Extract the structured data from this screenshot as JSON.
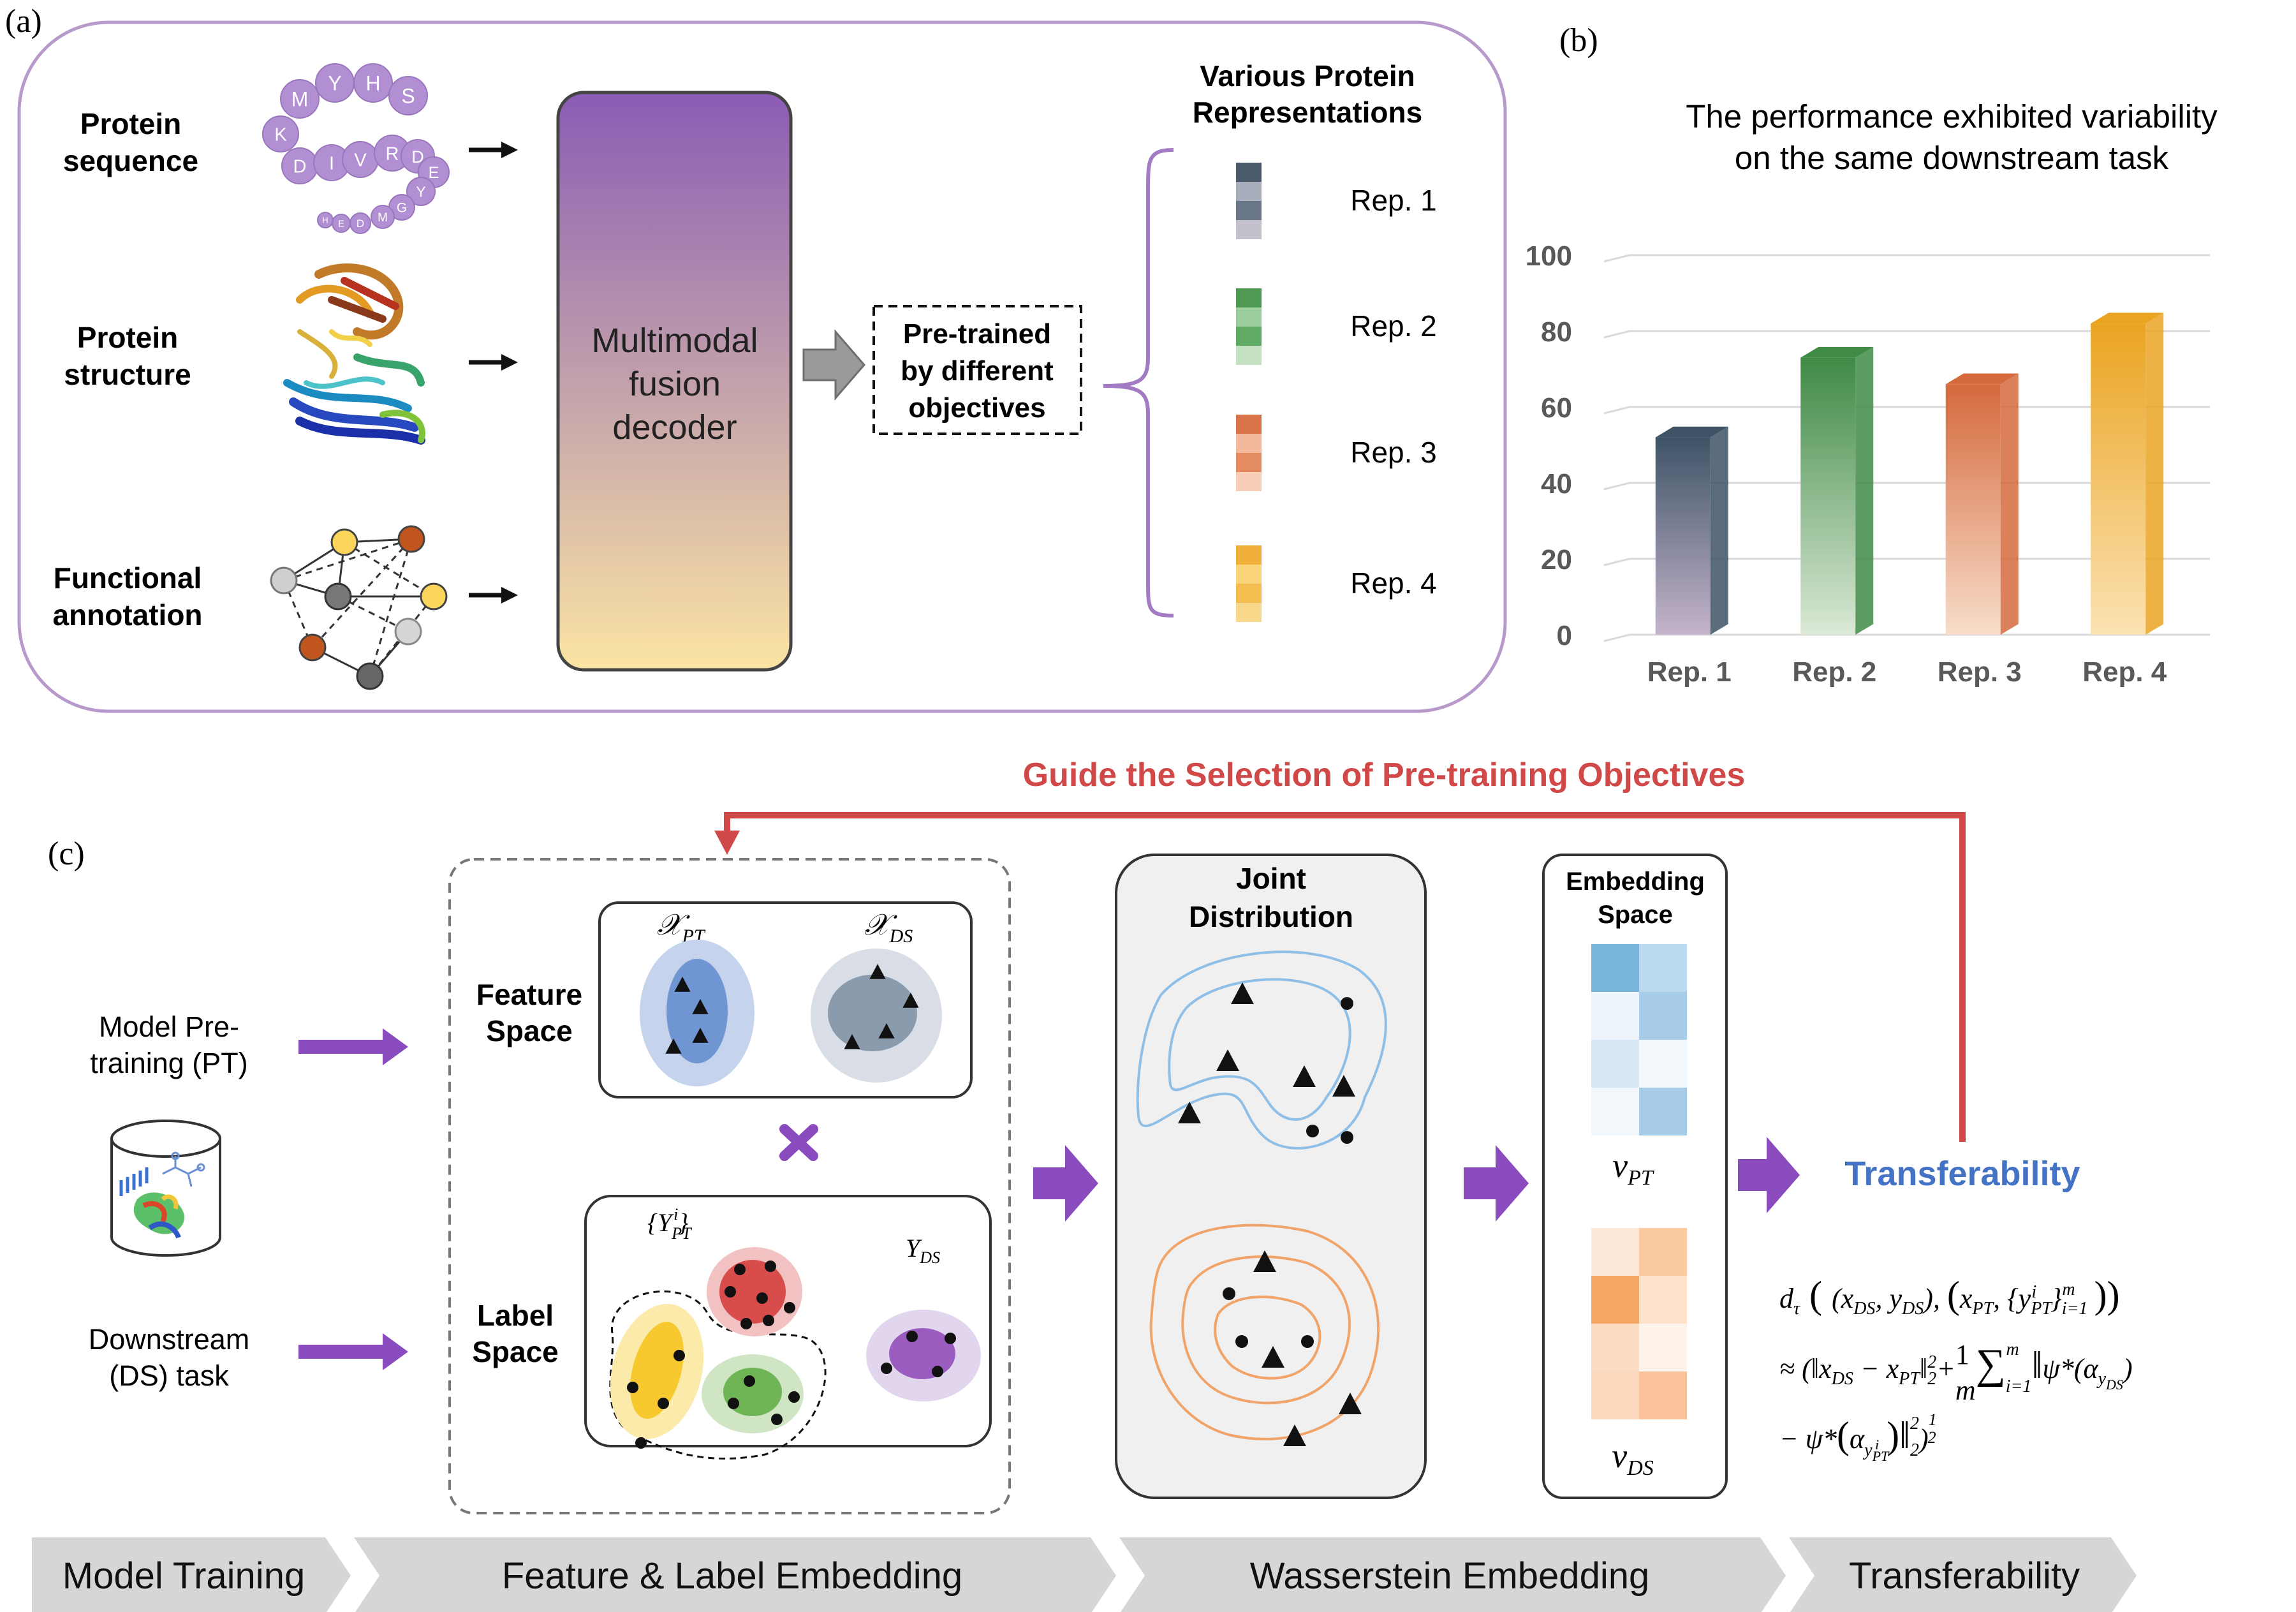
{
  "panel_a": {
    "label": "(a)",
    "inputs": [
      {
        "line1": "Protein",
        "line2": "sequence"
      },
      {
        "line1": "Protein",
        "line2": "structure"
      },
      {
        "line1": "Functional",
        "line2": "annotation"
      }
    ],
    "sequence_letters": [
      "M",
      "Y",
      "H",
      "S",
      "K",
      "D",
      "I",
      "V",
      "R",
      "D",
      "E",
      "Y",
      "G",
      "M",
      "D",
      "E",
      "H"
    ],
    "decoder": {
      "line1": "Multimodal",
      "line2": "fusion",
      "line3": "decoder"
    },
    "pretrained": {
      "line1": "Pre-trained",
      "line2": "by different",
      "line3": "objectives"
    },
    "reps_title": {
      "line1": "Various Protein",
      "line2": "Representations"
    },
    "reps": [
      "Rep. 1",
      "Rep. 2",
      "Rep. 3",
      "Rep. 4"
    ],
    "colors": {
      "frame": "#b79acb",
      "decoder_top": "#8a5cb4",
      "decoder_bottom": "#fbe4a3",
      "brace": "#a37bc4"
    }
  },
  "panel_b": {
    "label": "(b)",
    "title_line1": "The performance exhibited variability",
    "title_line2": "on the same downstream task"
  },
  "chart_data": {
    "type": "bar",
    "categories": [
      "Rep. 1",
      "Rep. 2",
      "Rep. 3",
      "Rep. 4"
    ],
    "values": [
      52,
      73,
      66,
      82
    ],
    "ylim": [
      0,
      100
    ],
    "yticks": [
      "0",
      "20",
      "40",
      "60",
      "80",
      "100"
    ],
    "grid": true,
    "bar_colors": [
      {
        "top": "#3e5366",
        "bottom": "#c4b4cc"
      },
      {
        "top": "#3f8a45",
        "bottom": "#dbe9d6"
      },
      {
        "top": "#d56a3d",
        "bottom": "#f8ddca"
      },
      {
        "top": "#eaa422",
        "bottom": "#fbe2b2"
      }
    ]
  },
  "panel_c": {
    "label": "(c)",
    "guide": "Guide the Selection of Pre-training Objectives",
    "pt": {
      "line1": "Model Pre-",
      "line2": "training (PT)"
    },
    "ds": {
      "line1": "Downstream",
      "line2": "(DS) task"
    },
    "feature_space": {
      "line1": "Feature",
      "line2": "Space"
    },
    "label_space": {
      "line1": "Label",
      "line2": "Space"
    },
    "joint": {
      "line1": "Joint",
      "line2": "Distribution"
    },
    "embedding": {
      "line1": "Embedding",
      "line2": "Space"
    },
    "transferability": "Transferability",
    "colors": {
      "red": "#d04848",
      "purple": "#8a4bbf",
      "blue": "#4472c4"
    }
  },
  "stages": [
    "Model Training",
    "Feature & Label Embedding",
    "Wasserstein Embedding",
    "Transferability"
  ]
}
